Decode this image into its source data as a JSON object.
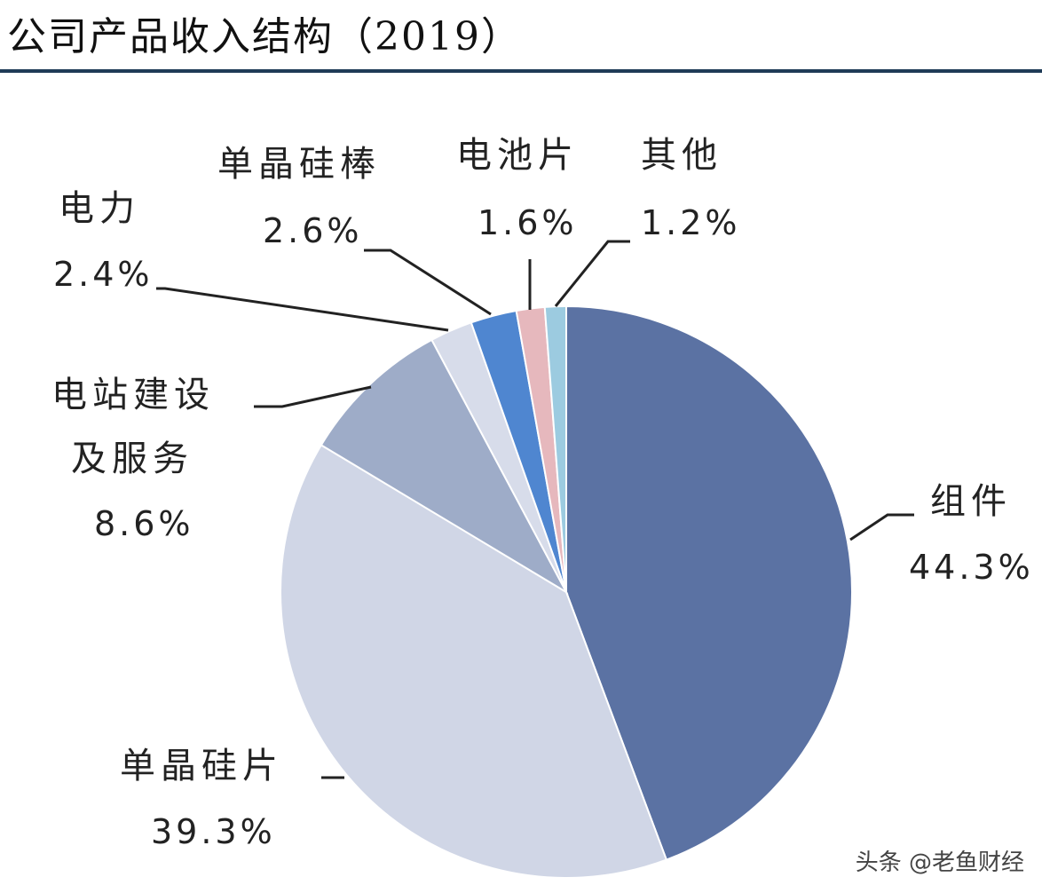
{
  "header": {
    "title": "公司产品收入结构（2019）"
  },
  "watermark": "头条 @老鱼财经",
  "chart_data": {
    "type": "pie",
    "title": "公司产品收入结构（2019）",
    "start_angle": "12 o'clock",
    "direction": "clockwise",
    "slices": [
      {
        "label": "组件",
        "value": 44.3,
        "display": "44.3%",
        "color": "#5b72a3"
      },
      {
        "label": "单晶硅片",
        "value": 39.3,
        "display": "39.3%",
        "color": "#d0d6e6"
      },
      {
        "label": "电站建设及服务",
        "label_lines": [
          "电站建设",
          "及服务"
        ],
        "value": 8.6,
        "display": "8.6%",
        "color": "#9eacc8"
      },
      {
        "label": "电力",
        "value": 2.4,
        "display": "2.4%",
        "color": "#d7dcea"
      },
      {
        "label": "单晶硅棒",
        "value": 2.6,
        "display": "2.6%",
        "color": "#4f86d0"
      },
      {
        "label": "电池片",
        "value": 1.6,
        "display": "1.6%",
        "color": "#e6b8bd"
      },
      {
        "label": "其他",
        "value": 1.2,
        "display": "1.2%",
        "color": "#9ccbe0"
      }
    ]
  }
}
